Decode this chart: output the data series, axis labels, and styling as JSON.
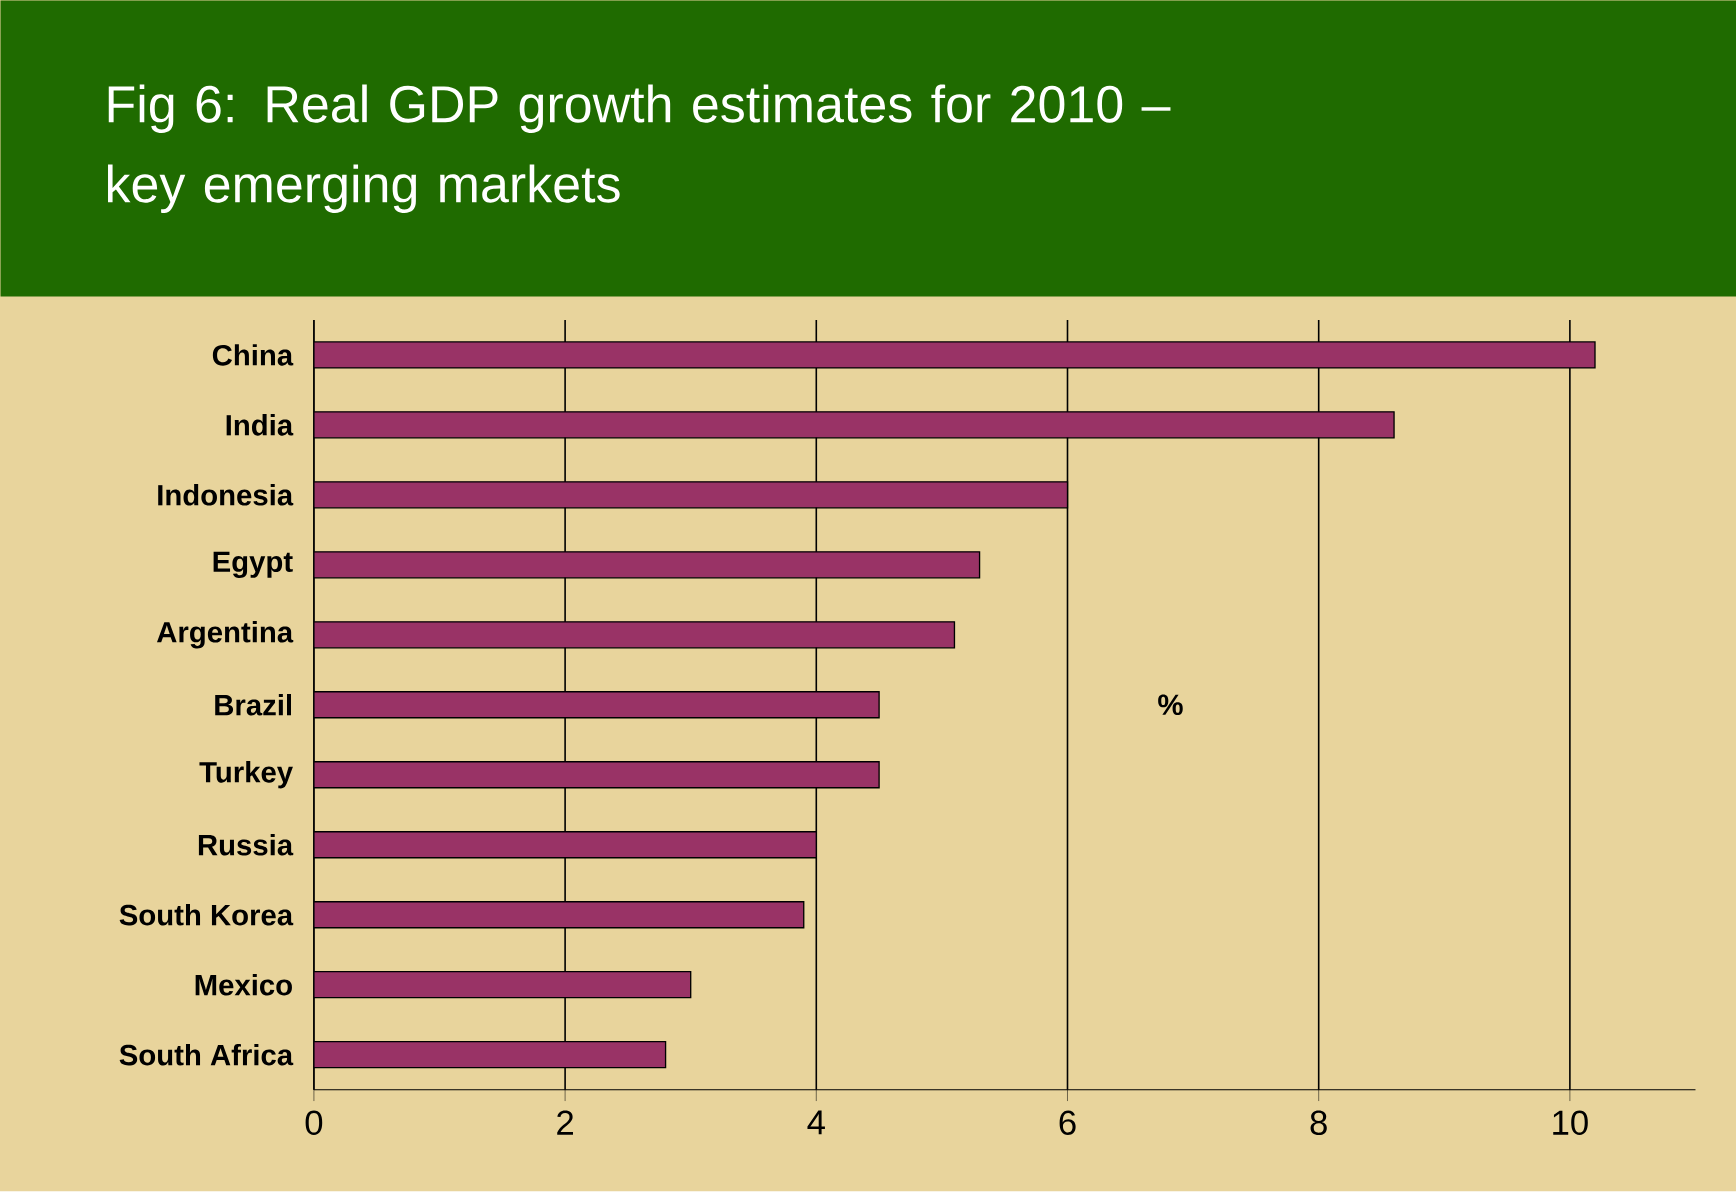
{
  "chart_data": {
    "type": "bar",
    "orientation": "horizontal",
    "title": "Fig 6: Real GDP growth estimates for 2010 – key emerging markets",
    "xlabel": "%",
    "categories": [
      "China",
      "India",
      "Indonesia",
      "Egypt",
      "Argentina",
      "Brazil",
      "Turkey",
      "Russia",
      "South Korea",
      "Mexico",
      "South Africa"
    ],
    "values": [
      10.2,
      8.6,
      6.0,
      5.3,
      5.1,
      4.5,
      4.5,
      4.0,
      3.9,
      3.0,
      2.8
    ],
    "color": "#993366",
    "xlim": [
      0,
      11
    ],
    "xticks": [
      0,
      2,
      4,
      6,
      8,
      10
    ],
    "grid": "x"
  }
}
